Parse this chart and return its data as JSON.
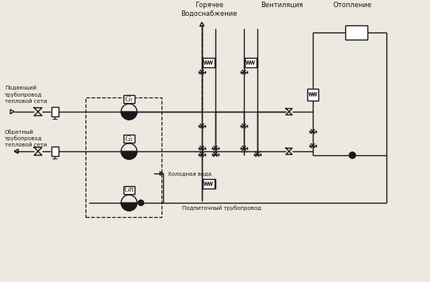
{
  "bg": "#ede9e0",
  "fg": "#1a1a1a",
  "lw": 1.0,
  "titles": {
    "hot_water": "Горячее\nВодоснабжение",
    "ventilation": "Вентиляция",
    "heating": "Отопление"
  },
  "labels": {
    "supply": "Подающий\nтрубопровод\nтепловой сети",
    "return_pipe": "Обратный\nтрубопровод\nтепловой сети",
    "cold_water": "Холодная вода",
    "makeup": "Подпиточный трубопровод"
  },
  "gauges": [
    "G₁",
    "G₂",
    "Gп"
  ]
}
